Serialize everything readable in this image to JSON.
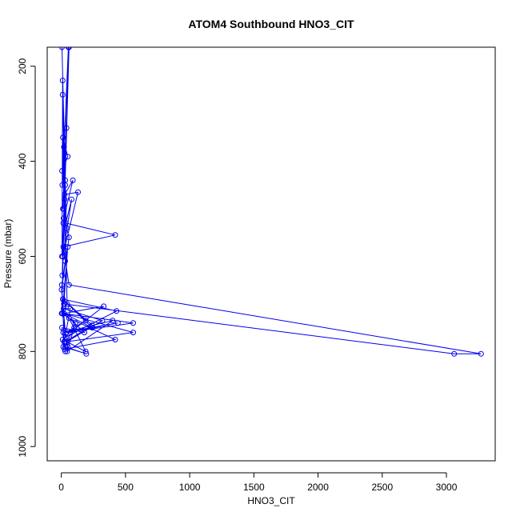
{
  "chart_data": {
    "type": "line",
    "title": "ATOM4 Southbound HNO3_CIT",
    "xlabel": "HNO3_CIT",
    "ylabel": "Pressure (mbar)",
    "xlim": [
      -110,
      3380
    ],
    "ylim": [
      1030,
      160
    ],
    "y_reversed": true,
    "grid": false,
    "x_ticks": [
      0,
      500,
      1000,
      1500,
      2000,
      2500,
      3000
    ],
    "y_ticks": [
      200,
      400,
      600,
      800,
      1000
    ],
    "series_color": "#0000ee",
    "series": [
      {
        "x": [
          5,
          30,
          60,
          12,
          40,
          8,
          55,
          18,
          90,
          25,
          130,
          10,
          80,
          35,
          420,
          15,
          60,
          3270,
          3060,
          20,
          50,
          8,
          560,
          40,
          190,
          12,
          240,
          30,
          560,
          20,
          330,
          70,
          440,
          15,
          400,
          45,
          100,
          10,
          190,
          60,
          420,
          25,
          110,
          8,
          50,
          40,
          320,
          18,
          70,
          15,
          195,
          30,
          30,
          5,
          180,
          20,
          240,
          12,
          430,
          35,
          2,
          60,
          40,
          10,
          5,
          30,
          20,
          8,
          15,
          25,
          3,
          45,
          10,
          20,
          6,
          50,
          12,
          30,
          4,
          22
        ],
        "y": [
          160,
          440,
          160,
          500,
          330,
          450,
          160,
          520,
          440,
          470,
          465,
          600,
          480,
          530,
          555,
          580,
          660,
          805,
          805,
          700,
          580,
          720,
          740,
          760,
          735,
          690,
          745,
          780,
          760,
          720,
          705,
          760,
          740,
          760,
          735,
          800,
          750,
          775,
          800,
          730,
          775,
          795,
          740,
          720,
          790,
          780,
          735,
          710,
          710,
          790,
          805,
          790,
          800,
          750,
          760,
          720,
          750,
          690,
          715,
          770,
          670,
          560,
          540,
          230,
          600,
          450,
          500,
          640,
          530,
          480,
          720,
          700,
          260,
          370,
          420,
          390,
          350,
          610,
          660,
          780
        ]
      }
    ]
  }
}
